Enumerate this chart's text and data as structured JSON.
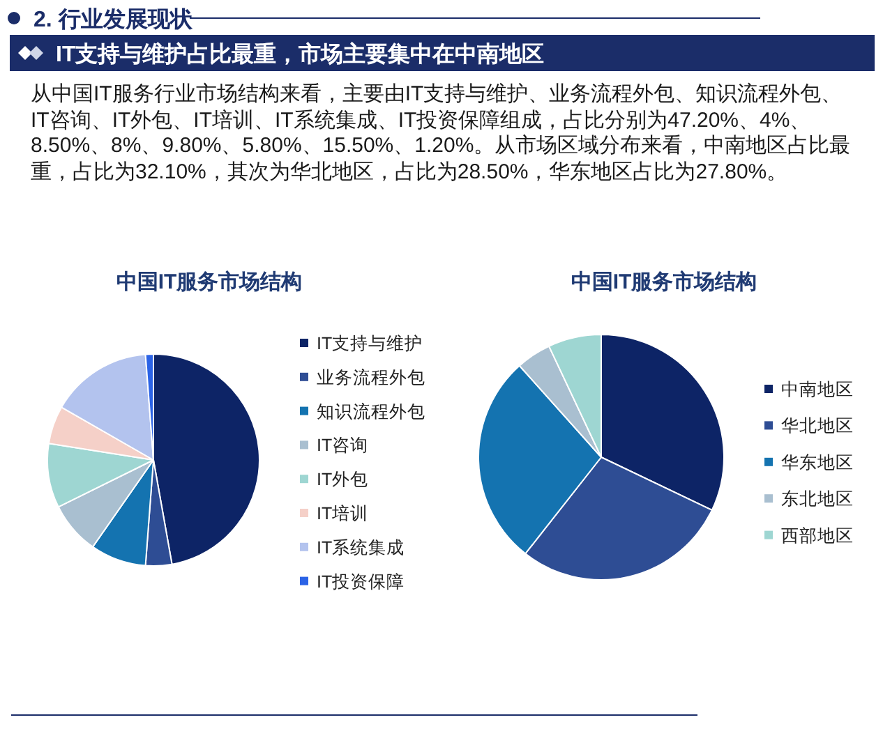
{
  "chart_data": [
    {
      "type": "other",
      "subtitle": "2. 行业发展现状",
      "title": "IT支持与维护占比最重，市场主要集中在中南地区",
      "annotations": [
        "从中国IT服务行业市场结构来看，主要由IT支持与维护、业务流程外包、知识流程外包、IT咨询、IT外包、IT培训、IT系统集成、IT投资保障组成，占比分别为47.20%、4%、8.50%、8%、9.80%、5.80%、15.50%、1.20%。从市场区域分布来看，中南地区占比最重，占比为32.10%，其次为华北地区，占比为28.50%，华东地区占比为27.80%。"
      ]
    },
    {
      "type": "pie",
      "title": "中国IT服务市场结构",
      "categories": [
        "IT支持与维护",
        "业务流程外包",
        "知识流程外包",
        "IT咨询",
        "IT外包",
        "IT培训",
        "IT系统集成",
        "IT投资保障"
      ],
      "values": [
        47.2,
        4,
        8.5,
        8,
        9.8,
        5.8,
        15.5,
        1.2
      ],
      "colors": [
        "#0d2466",
        "#2e4d94",
        "#1473b0",
        "#a9bfd0",
        "#9ed6d2",
        "#f5d0c8",
        "#b3c3ee",
        "#2b63e6"
      ],
      "legend": "right"
    },
    {
      "type": "pie",
      "title": "中国IT服务市场结构",
      "categories": [
        "中南地区",
        "华北地区",
        "华东地区",
        "东北地区",
        "西部地区"
      ],
      "values": [
        32.1,
        28.5,
        27.8,
        4.6,
        7.0
      ],
      "colors": [
        "#0d2466",
        "#2e4d94",
        "#1473b0",
        "#a9bfd0",
        "#9ed6d2"
      ],
      "legend": "right"
    }
  ]
}
